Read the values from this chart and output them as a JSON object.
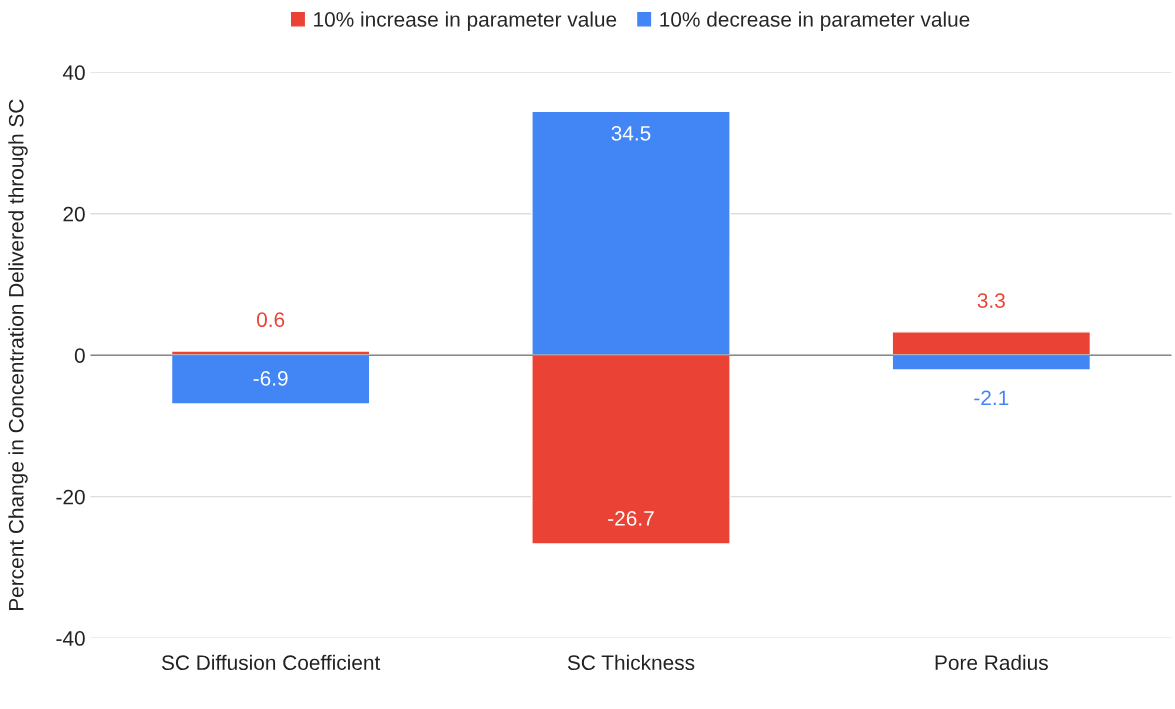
{
  "chart_data": {
    "type": "bar",
    "stacked": true,
    "ylabel": "Percent Change in Concentration Delivered through SC",
    "categories": [
      "SC Diffusion Coefficient",
      "SC Thickness",
      "Pore Radius"
    ],
    "series": [
      {
        "name": "10% increase in parameter value",
        "color": "#ea4335",
        "values": [
          0.6,
          -26.7,
          3.3
        ]
      },
      {
        "name": "10% decrease in parameter value",
        "color": "#4285f4",
        "values": [
          -6.9,
          34.5,
          -2.1
        ]
      }
    ],
    "ylim": [
      -40,
      40
    ],
    "yticks": [
      -40,
      -20,
      0,
      20,
      40
    ],
    "grid": "y",
    "legend": "top",
    "data_labels": true
  }
}
